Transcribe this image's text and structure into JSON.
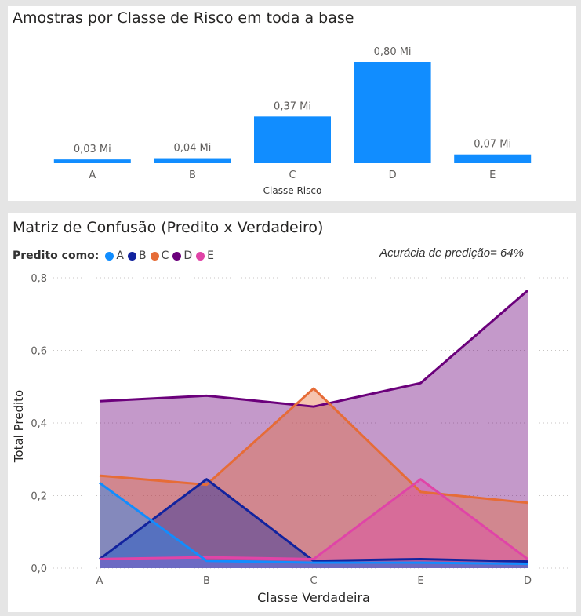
{
  "top_card": {
    "title": "Amostras por Classe de Risco em toda a base"
  },
  "bottom_card": {
    "title": "Matriz de Confusão (Predito x Verdadeiro)",
    "legend_title": "Predito como:",
    "accuracy_text": "Acurácia de predição= 64%"
  },
  "chart_data": [
    {
      "type": "bar",
      "title": "Amostras por Classe de Risco em toda a base",
      "categories": [
        "A",
        "B",
        "C",
        "D",
        "E"
      ],
      "values": [
        0.03,
        0.04,
        0.37,
        0.8,
        0.07
      ],
      "data_labels": [
        "0,03 Mi",
        "0,04 Mi",
        "0,37 Mi",
        "0,80 Mi",
        "0,07 Mi"
      ],
      "xlabel": "Classe Risco",
      "ylabel": "",
      "ylim": [
        0,
        0.8
      ],
      "color": "#118dff",
      "grid": false
    },
    {
      "type": "area",
      "title": "Matriz de Confusão (Predito x Verdadeiro)",
      "categories": [
        "A",
        "B",
        "C",
        "E",
        "D"
      ],
      "xlabel": "Classe Verdadeira",
      "ylabel": "Total Predito",
      "ylim": [
        0,
        0.8
      ],
      "yticks": [
        "0,0",
        "0,2",
        "0,4",
        "0,6",
        "0,8"
      ],
      "ytick_values": [
        0,
        0.2,
        0.4,
        0.6,
        0.8
      ],
      "grid": true,
      "legend_position": "top-left",
      "series": [
        {
          "name": "D",
          "color": "#6b007b",
          "values": [
            0.46,
            0.475,
            0.445,
            0.51,
            0.765
          ]
        },
        {
          "name": "C",
          "color": "#e66c37",
          "values": [
            0.255,
            0.23,
            0.495,
            0.21,
            0.18
          ]
        },
        {
          "name": "B",
          "color": "#12239e",
          "values": [
            0.025,
            0.245,
            0.02,
            0.025,
            0.018
          ]
        },
        {
          "name": "E",
          "color": "#e044a7",
          "values": [
            0.025,
            0.03,
            0.025,
            0.245,
            0.025
          ]
        },
        {
          "name": "A",
          "color": "#118dff",
          "values": [
            0.235,
            0.02,
            0.015,
            0.015,
            0.012
          ]
        }
      ]
    }
  ],
  "legend_order": [
    {
      "name": "A",
      "color": "#118dff"
    },
    {
      "name": "B",
      "color": "#12239e"
    },
    {
      "name": "C",
      "color": "#e66c37"
    },
    {
      "name": "D",
      "color": "#6b007b"
    },
    {
      "name": "E",
      "color": "#e044a7"
    }
  ]
}
